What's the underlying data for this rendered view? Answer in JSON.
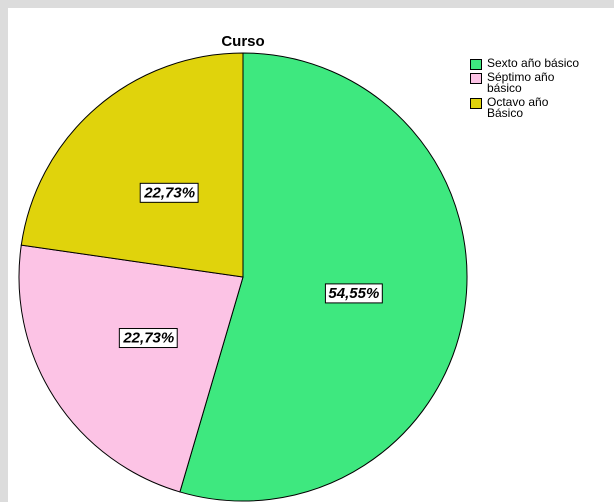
{
  "chart_data": {
    "type": "pie",
    "title": "Curso",
    "categories": [
      "Sexto año básico",
      "Séptimo año básico",
      "Octavo año Básico"
    ],
    "values": [
      54.55,
      22.73,
      22.73
    ],
    "value_labels": [
      "54,55%",
      "22,73%",
      "22,73%"
    ],
    "colors": [
      "#3ee87f",
      "#fcc3e5",
      "#e0d30c"
    ],
    "legend": "right"
  }
}
